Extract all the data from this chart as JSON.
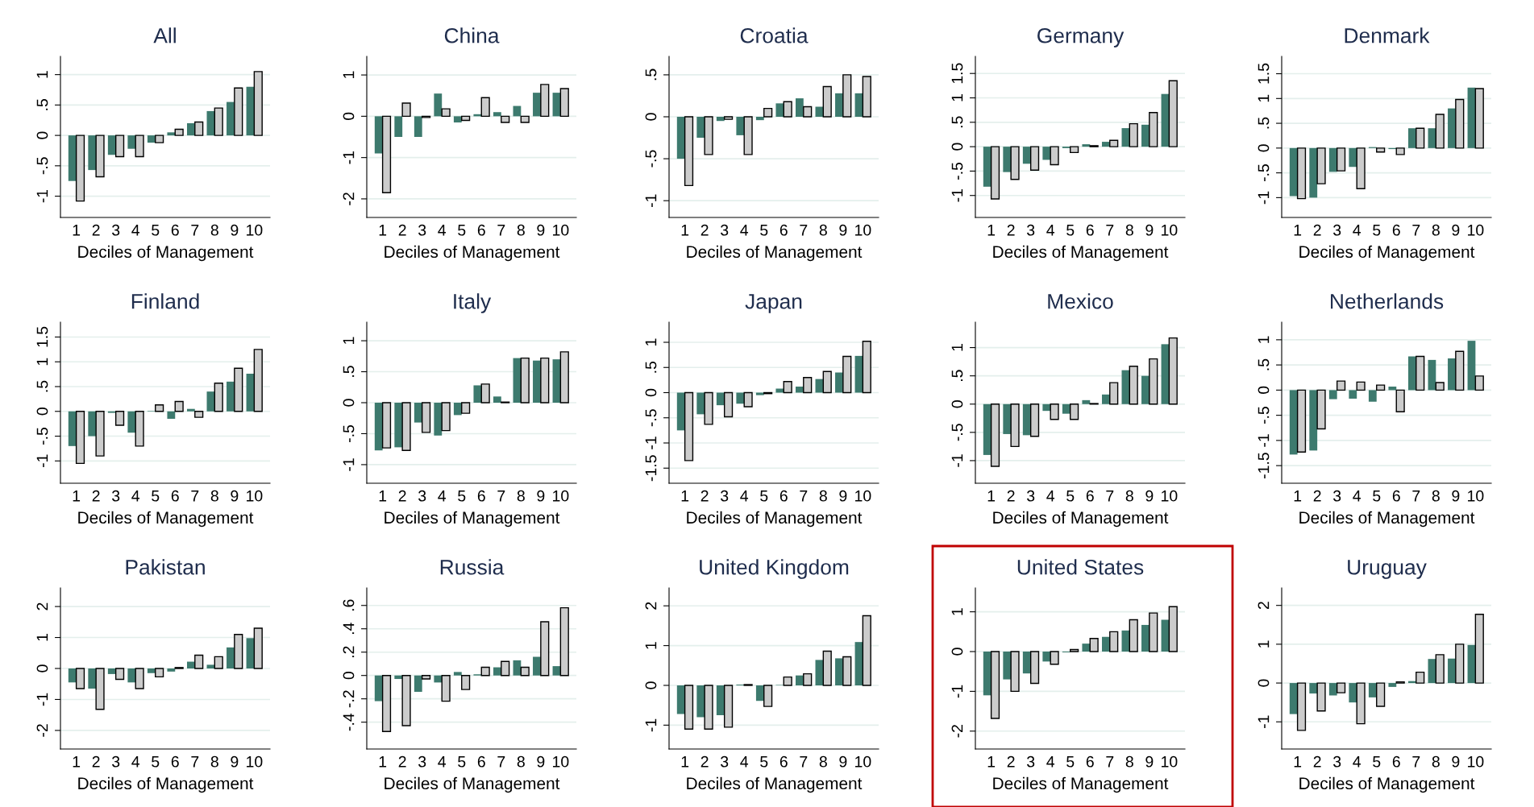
{
  "chart_data": [
    {
      "type": "bar",
      "title": "All",
      "xlabel": "Deciles of Management",
      "categories": [
        "1",
        "2",
        "3",
        "4",
        "5",
        "6",
        "7",
        "8",
        "9",
        "10"
      ],
      "ylim": [
        -1.35,
        1.3
      ],
      "yticks": [
        -1,
        {
          "value": -0.5,
          "label": "-.5"
        },
        0,
        {
          "value": 0.5,
          "label": ".5"
        },
        1
      ],
      "grid": "y",
      "series": [
        {
          "color": "#3d7a6e",
          "values": [
            -0.75,
            -0.57,
            -0.32,
            -0.22,
            -0.12,
            0.05,
            0.2,
            0.4,
            0.55,
            0.8
          ]
        },
        {
          "color": "#cccccc",
          "values": [
            -1.08,
            -0.68,
            -0.35,
            -0.35,
            -0.12,
            0.1,
            0.22,
            0.45,
            0.78,
            1.05
          ]
        }
      ]
    },
    {
      "type": "bar",
      "title": "China",
      "xlabel": "Deciles of Management",
      "categories": [
        "1",
        "2",
        "3",
        "4",
        "5",
        "6",
        "7",
        "8",
        "9",
        "10"
      ],
      "ylim": [
        -2.45,
        1.45
      ],
      "yticks": [
        -2,
        -1,
        0,
        1
      ],
      "grid": "y",
      "series": [
        {
          "color": "#3d7a6e",
          "values": [
            -0.9,
            -0.5,
            -0.5,
            0.55,
            -0.15,
            0.05,
            0.1,
            0.25,
            0.57,
            0.57
          ]
        },
        {
          "color": "#cccccc",
          "values": [
            -1.85,
            0.32,
            -0.03,
            0.18,
            -0.1,
            0.45,
            -0.15,
            -0.15,
            0.77,
            0.67
          ]
        }
      ]
    },
    {
      "type": "bar",
      "title": "Croatia",
      "xlabel": "Deciles of Management",
      "categories": [
        "1",
        "2",
        "3",
        "4",
        "5",
        "6",
        "7",
        "8",
        "9",
        "10"
      ],
      "ylim": [
        -1.2,
        0.72
      ],
      "yticks": [
        -1,
        {
          "value": -0.5,
          "label": "-.5"
        },
        0,
        {
          "value": 0.5,
          "label": ".5"
        }
      ],
      "grid": "y",
      "series": [
        {
          "color": "#3d7a6e",
          "values": [
            -0.5,
            -0.25,
            -0.05,
            -0.22,
            -0.04,
            0.16,
            0.22,
            0.12,
            0.28,
            0.28
          ]
        },
        {
          "color": "#cccccc",
          "values": [
            -0.82,
            -0.45,
            -0.03,
            -0.45,
            0.1,
            0.18,
            0.12,
            0.36,
            0.5,
            0.48
          ]
        }
      ]
    },
    {
      "type": "bar",
      "title": "Germany",
      "xlabel": "Deciles of Management",
      "categories": [
        "1",
        "2",
        "3",
        "4",
        "5",
        "6",
        "7",
        "8",
        "9",
        "10"
      ],
      "ylim": [
        -1.45,
        1.85
      ],
      "yticks": [
        -1,
        {
          "value": -0.5,
          "label": "-.5"
        },
        0,
        {
          "value": 0.5,
          "label": ".5"
        },
        1,
        1.5
      ],
      "grid": "y",
      "series": [
        {
          "color": "#3d7a6e",
          "values": [
            -0.82,
            -0.52,
            -0.35,
            -0.27,
            -0.03,
            0.05,
            0.1,
            0.38,
            0.45,
            1.08
          ]
        },
        {
          "color": "#cccccc",
          "values": [
            -1.07,
            -0.67,
            -0.48,
            -0.37,
            -0.12,
            0.02,
            0.13,
            0.47,
            0.7,
            1.35
          ]
        }
      ]
    },
    {
      "type": "bar",
      "title": "Denmark",
      "xlabel": "Deciles of Management",
      "categories": [
        "1",
        "2",
        "3",
        "4",
        "5",
        "6",
        "7",
        "8",
        "9",
        "10"
      ],
      "ylim": [
        -1.4,
        1.85
      ],
      "yticks": [
        -1,
        {
          "value": -0.5,
          "label": "-.5"
        },
        0,
        {
          "value": 0.5,
          "label": ".5"
        },
        1,
        1.5
      ],
      "grid": "y",
      "series": [
        {
          "color": "#3d7a6e",
          "values": [
            -0.97,
            -1.0,
            -0.48,
            -0.38,
            0.02,
            -0.02,
            0.4,
            0.4,
            0.8,
            1.22
          ]
        },
        {
          "color": "#cccccc",
          "values": [
            -1.02,
            -0.72,
            -0.46,
            -0.82,
            -0.08,
            -0.13,
            0.4,
            0.68,
            0.98,
            1.2
          ]
        }
      ]
    },
    {
      "type": "bar",
      "title": "Finland",
      "xlabel": "Deciles of Management",
      "categories": [
        "1",
        "2",
        "3",
        "4",
        "5",
        "6",
        "7",
        "8",
        "9",
        "10"
      ],
      "ylim": [
        -1.45,
        1.8
      ],
      "yticks": [
        -1,
        {
          "value": -0.5,
          "label": "-.5"
        },
        0,
        {
          "value": 0.5,
          "label": ".5"
        },
        1,
        1.5
      ],
      "grid": "y",
      "series": [
        {
          "color": "#3d7a6e",
          "values": [
            -0.7,
            -0.5,
            -0.03,
            -0.43,
            0.01,
            -0.15,
            0.05,
            0.4,
            0.6,
            0.76
          ]
        },
        {
          "color": "#cccccc",
          "values": [
            -1.05,
            -0.9,
            -0.28,
            -0.7,
            0.13,
            0.2,
            -0.12,
            0.57,
            0.87,
            1.25
          ]
        }
      ]
    },
    {
      "type": "bar",
      "title": "Italy",
      "xlabel": "Deciles of Management",
      "categories": [
        "1",
        "2",
        "3",
        "4",
        "5",
        "6",
        "7",
        "8",
        "9",
        "10"
      ],
      "ylim": [
        -1.3,
        1.3
      ],
      "yticks": [
        -1,
        {
          "value": -0.5,
          "label": "-.5"
        },
        0,
        {
          "value": 0.5,
          "label": ".5"
        },
        1
      ],
      "grid": "y",
      "series": [
        {
          "color": "#3d7a6e",
          "values": [
            -0.77,
            -0.72,
            -0.32,
            -0.53,
            -0.2,
            0.28,
            0.1,
            0.72,
            0.68,
            0.7
          ]
        },
        {
          "color": "#cccccc",
          "values": [
            -0.73,
            -0.77,
            -0.48,
            -0.45,
            -0.17,
            0.3,
            0.01,
            0.72,
            0.72,
            0.82
          ]
        }
      ]
    },
    {
      "type": "bar",
      "title": "Japan",
      "xlabel": "Deciles of Management",
      "categories": [
        "1",
        "2",
        "3",
        "4",
        "5",
        "6",
        "7",
        "8",
        "9",
        "10"
      ],
      "ylim": [
        -1.8,
        1.4
      ],
      "yticks": [
        {
          "value": -1.5,
          "label": "-1.5"
        },
        -1,
        {
          "value": -0.5,
          "label": "-.5"
        },
        0,
        {
          "value": 0.5,
          "label": ".5"
        },
        1
      ],
      "grid": "y",
      "series": [
        {
          "color": "#3d7a6e",
          "values": [
            -0.75,
            -0.43,
            -0.25,
            -0.22,
            -0.05,
            0.08,
            0.12,
            0.27,
            0.4,
            0.73
          ]
        },
        {
          "color": "#cccccc",
          "values": [
            -1.35,
            -0.63,
            -0.48,
            -0.28,
            -0.02,
            0.22,
            0.3,
            0.42,
            0.72,
            1.02
          ]
        }
      ]
    },
    {
      "type": "bar",
      "title": "Mexico",
      "xlabel": "Deciles of Management",
      "categories": [
        "1",
        "2",
        "3",
        "4",
        "5",
        "6",
        "7",
        "8",
        "9",
        "10"
      ],
      "ylim": [
        -1.4,
        1.45
      ],
      "yticks": [
        -1,
        {
          "value": -0.5,
          "label": "-.5"
        },
        0,
        {
          "value": 0.5,
          "label": ".5"
        },
        1
      ],
      "grid": "y",
      "series": [
        {
          "color": "#3d7a6e",
          "values": [
            -0.9,
            -0.53,
            -0.55,
            -0.12,
            -0.17,
            0.07,
            0.17,
            0.6,
            0.5,
            1.06
          ]
        },
        {
          "color": "#cccccc",
          "values": [
            -1.1,
            -0.75,
            -0.57,
            -0.27,
            -0.27,
            0.01,
            0.38,
            0.67,
            0.8,
            1.17
          ]
        }
      ]
    },
    {
      "type": "bar",
      "title": "Netherlands",
      "xlabel": "Deciles of Management",
      "categories": [
        "1",
        "2",
        "3",
        "4",
        "5",
        "6",
        "7",
        "8",
        "9",
        "10"
      ],
      "ylim": [
        -1.85,
        1.35
      ],
      "yticks": [
        {
          "value": -1.5,
          "label": "-1.5"
        },
        -1,
        {
          "value": -0.5,
          "label": "-.5"
        },
        0,
        {
          "value": 0.5,
          "label": ".5"
        },
        1
      ],
      "grid": "y",
      "series": [
        {
          "color": "#3d7a6e",
          "values": [
            -1.28,
            -1.2,
            -0.18,
            -0.17,
            -0.23,
            0.07,
            0.67,
            0.6,
            0.63,
            0.98
          ]
        },
        {
          "color": "#cccccc",
          "values": [
            -1.23,
            -0.77,
            0.18,
            0.16,
            0.1,
            -0.43,
            0.67,
            0.15,
            0.77,
            0.28
          ]
        }
      ]
    },
    {
      "type": "bar",
      "title": "Pakistan",
      "xlabel": "Deciles of Management",
      "categories": [
        "1",
        "2",
        "3",
        "4",
        "5",
        "6",
        "7",
        "8",
        "9",
        "10"
      ],
      "ylim": [
        -2.6,
        2.6
      ],
      "yticks": [
        -2,
        -1,
        0,
        1,
        2
      ],
      "grid": "y",
      "series": [
        {
          "color": "#3d7a6e",
          "values": [
            -0.45,
            -0.65,
            -0.18,
            -0.45,
            -0.15,
            -0.1,
            0.22,
            0.12,
            0.68,
            0.98
          ]
        },
        {
          "color": "#cccccc",
          "values": [
            -0.65,
            -1.32,
            -0.35,
            -0.65,
            -0.27,
            0.03,
            0.43,
            0.38,
            1.1,
            1.3
          ]
        }
      ]
    },
    {
      "type": "bar",
      "title": "Russia",
      "xlabel": "Deciles of Management",
      "categories": [
        "1",
        "2",
        "3",
        "4",
        "5",
        "6",
        "7",
        "8",
        "9",
        "10"
      ],
      "ylim": [
        -0.63,
        0.75
      ],
      "yticks": [
        {
          "value": -0.4,
          "label": "-.4"
        },
        {
          "value": -0.2,
          "label": "-.2"
        },
        0,
        {
          "value": 0.2,
          "label": ".2"
        },
        {
          "value": 0.4,
          "label": ".4"
        },
        {
          "value": 0.6,
          "label": ".6"
        }
      ],
      "grid": "y",
      "series": [
        {
          "color": "#3d7a6e",
          "values": [
            -0.22,
            -0.03,
            -0.14,
            -0.06,
            0.03,
            0.01,
            0.07,
            0.13,
            0.16,
            0.08
          ]
        },
        {
          "color": "#cccccc",
          "values": [
            -0.48,
            -0.43,
            -0.03,
            -0.22,
            -0.12,
            0.07,
            0.12,
            0.07,
            0.46,
            0.58
          ]
        }
      ]
    },
    {
      "type": "bar",
      "title": "United Kingdom",
      "xlabel": "Deciles of Management",
      "categories": [
        "1",
        "2",
        "3",
        "4",
        "5",
        "6",
        "7",
        "8",
        "9",
        "10"
      ],
      "ylim": [
        -1.6,
        2.45
      ],
      "yticks": [
        -1,
        0,
        1,
        2
      ],
      "grid": "y",
      "series": [
        {
          "color": "#3d7a6e",
          "values": [
            -0.72,
            -0.8,
            -0.75,
            0.02,
            -0.39,
            0.01,
            0.25,
            0.64,
            0.68,
            1.09
          ]
        },
        {
          "color": "#cccccc",
          "values": [
            -1.1,
            -1.1,
            -1.05,
            0.02,
            -0.53,
            0.21,
            0.29,
            0.86,
            0.72,
            1.75
          ]
        }
      ]
    },
    {
      "type": "bar",
      "title": "United States",
      "xlabel": "Deciles of Management",
      "categories": [
        "1",
        "2",
        "3",
        "4",
        "5",
        "6",
        "7",
        "8",
        "9",
        "10"
      ],
      "ylim": [
        -2.45,
        1.6
      ],
      "yticks": [
        -2,
        -1,
        0,
        1
      ],
      "grid": "y",
      "series": [
        {
          "color": "#3d7a6e",
          "values": [
            -1.1,
            -0.7,
            -0.55,
            -0.25,
            -0.02,
            0.2,
            0.37,
            0.53,
            0.67,
            0.8
          ]
        },
        {
          "color": "#cccccc",
          "values": [
            -1.68,
            -1.0,
            -0.8,
            -0.32,
            0.05,
            0.33,
            0.5,
            0.8,
            0.97,
            1.13
          ]
        }
      ]
    },
    {
      "type": "bar",
      "title": "Uruguay",
      "xlabel": "Deciles of Management",
      "categories": [
        "1",
        "2",
        "3",
        "4",
        "5",
        "6",
        "7",
        "8",
        "9",
        "10"
      ],
      "ylim": [
        -1.7,
        2.45
      ],
      "yticks": [
        -1,
        0,
        1,
        2
      ],
      "grid": "y",
      "series": [
        {
          "color": "#3d7a6e",
          "values": [
            -0.8,
            -0.27,
            -0.32,
            -0.5,
            -0.37,
            -0.1,
            0.05,
            0.62,
            0.63,
            0.98
          ]
        },
        {
          "color": "#cccccc",
          "values": [
            -1.22,
            -0.72,
            -0.25,
            -1.05,
            -0.6,
            0.03,
            0.28,
            0.73,
            1.0,
            1.77
          ]
        }
      ]
    }
  ]
}
